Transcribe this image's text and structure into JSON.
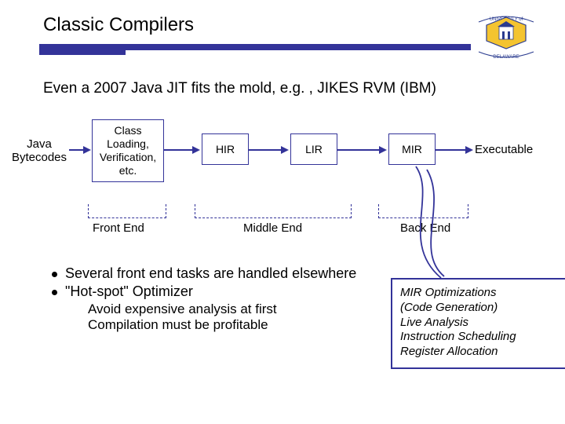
{
  "title": "Classic Compilers",
  "subtitle": "Even a 2007 Java JIT fits the mold, e.g. , JIKES RVM (IBM)",
  "logo": {
    "top": "UNIVERSITY of",
    "bottom": "DELAWARE"
  },
  "flow": {
    "input_label": "Java\nBytecodes",
    "box1": "Class\nLoading,\nVerification,\netc.",
    "box2": "HIR",
    "box3": "LIR",
    "box4": "MIR",
    "output_label": "Executable",
    "brace_front": "Front End",
    "brace_middle": "Middle End",
    "brace_back": "Back End",
    "colors": {
      "stroke": "#333399"
    }
  },
  "bullets": {
    "b1": "Several front end tasks are handled elsewhere",
    "b2": "\"Hot-spot\" Optimizer",
    "sub1": "Avoid expensive analysis at first",
    "sub2": "Compilation must be profitable"
  },
  "callout": {
    "l1": "MIR Optimizations",
    "l2": "(Code Generation)",
    "l3": "Live Analysis",
    "l4": "Instruction Scheduling",
    "l5": "Register Allocation"
  }
}
